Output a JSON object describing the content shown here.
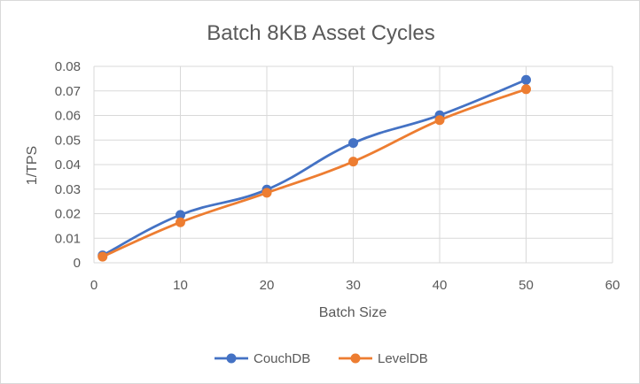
{
  "chart_data": {
    "type": "line",
    "title": "Batch 8KB Asset Cycles",
    "xlabel": "Batch Size",
    "ylabel": "1/TPS",
    "xlim": [
      0,
      60
    ],
    "ylim": [
      0,
      0.08
    ],
    "xticks": [
      "0",
      "10",
      "20",
      "30",
      "40",
      "50",
      "60"
    ],
    "yticks": [
      "0",
      "0.01",
      "0.02",
      "0.03",
      "0.04",
      "0.05",
      "0.06",
      "0.07",
      "0.08"
    ],
    "grid": true,
    "legend_position": "bottom",
    "x": [
      1,
      10,
      20,
      30,
      40,
      50
    ],
    "series": [
      {
        "name": "CouchDB",
        "color": "#4472c4",
        "values": [
          0.003,
          0.0195,
          0.0298,
          0.0488,
          0.0601,
          0.0745
        ]
      },
      {
        "name": "LevelDB",
        "color": "#ed7d31",
        "values": [
          0.0025,
          0.0165,
          0.0285,
          0.0412,
          0.0581,
          0.0707
        ]
      }
    ]
  }
}
